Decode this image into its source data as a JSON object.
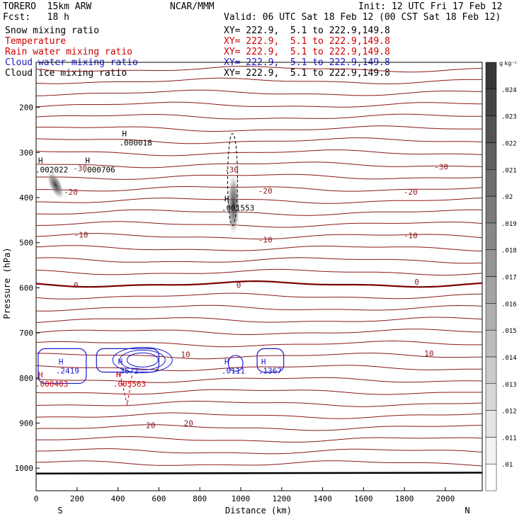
{
  "header": {
    "model": "TORERO  15km ARW",
    "center": "NCAR/MMM",
    "init": "Init: 12 UTC Fri 17 Feb 12",
    "fcst": "Fcst:   18 h",
    "valid": "Valid: 06 UTC Sat 18 Feb 12 (00 CST Sat 18 Feb 12)"
  },
  "fields": [
    {
      "name": "Snow mixing ratio",
      "xy": "XY= 222.9,  5.1 to 222.9,149.8",
      "color": "#000000"
    },
    {
      "name": "Temperature",
      "xy": "XY= 222.9,  5.1 to 222.9,149.8",
      "color": "#cc0000"
    },
    {
      "name": "Rain water mixing ratio",
      "xy": "XY= 222.9,  5.1 to 222.9,149.8",
      "color": "#cc0000"
    },
    {
      "name": "Cloud water mixing ratio",
      "xy": "XY= 222.9,  5.1 to 222.9,149.8",
      "color": "#1a1acc"
    },
    {
      "name": "Cloud ice mixing ratio",
      "xy": "XY= 222.9,  5.1 to 222.9,149.8",
      "color": "#000000"
    }
  ],
  "chart_data": {
    "type": "cross-section contour",
    "xlabel": "Distance (km)",
    "ylabel": "Pressure (hPa)",
    "x_ticks": [
      0,
      200,
      400,
      600,
      800,
      1000,
      1200,
      1400,
      1600,
      1800,
      2000
    ],
    "x_tick_labels": [
      "0",
      "200",
      "400",
      "600",
      "800",
      "1000",
      "1200",
      "1400",
      "1600",
      "1800",
      "2000"
    ],
    "y_ticks": [
      200,
      300,
      400,
      500,
      600,
      700,
      800,
      900,
      1000
    ],
    "y_tick_labels": [
      "200",
      "300",
      "400",
      "500",
      "600",
      "700",
      "800",
      "900",
      "1000"
    ],
    "xlim": [
      0,
      2180
    ],
    "ylim": [
      100,
      1050
    ],
    "left_end_label": "S",
    "right_end_label": "N",
    "colorbar": {
      "unit": "g kg⁻¹",
      "levels": [
        0.01,
        0.011,
        0.012,
        0.013,
        0.014,
        0.015,
        0.016,
        0.017,
        0.018,
        0.019,
        0.02,
        0.021,
        0.022,
        0.023,
        0.024
      ],
      "labels": [
        ".01",
        ".011",
        ".012",
        ".013",
        ".014",
        ".015",
        ".016",
        ".017",
        ".018",
        ".019",
        ".02",
        ".021",
        ".022",
        ".023",
        ".024"
      ]
    },
    "temperature_labels": [
      {
        "text": "-30",
        "x": 215,
        "p": 335
      },
      {
        "text": "-30",
        "x": 955,
        "p": 338
      },
      {
        "text": "-30",
        "x": 1980,
        "p": 332
      },
      {
        "text": "-20",
        "x": 170,
        "p": 387
      },
      {
        "text": "-20",
        "x": 1120,
        "p": 385
      },
      {
        "text": "-20",
        "x": 1830,
        "p": 387
      },
      {
        "text": "-10",
        "x": 220,
        "p": 482
      },
      {
        "text": "-10",
        "x": 1120,
        "p": 493
      },
      {
        "text": "-10",
        "x": 1830,
        "p": 484
      },
      {
        "text": "0",
        "x": 195,
        "p": 594
      },
      {
        "text": "0",
        "x": 990,
        "p": 594
      },
      {
        "text": "0",
        "x": 1860,
        "p": 587
      },
      {
        "text": "10",
        "x": 730,
        "p": 748
      },
      {
        "text": "10",
        "x": 1920,
        "p": 745
      },
      {
        "text": "20",
        "x": 560,
        "p": 905
      },
      {
        "text": "20",
        "x": 745,
        "p": 900
      }
    ],
    "max_labels": [
      {
        "h": "H",
        "value": ".000018",
        "x": 420,
        "p": 267,
        "color": "#000000"
      },
      {
        "h": "H",
        "value": ".002022",
        "x": 10,
        "p": 327,
        "color": "#000000"
      },
      {
        "h": "H",
        "value": ".000706",
        "x": 240,
        "p": 327,
        "color": "#000000"
      },
      {
        "h": "H",
        "value": ".001553",
        "x": 920,
        "p": 412,
        "color": "#000000"
      },
      {
        "h": "H",
        "value": ".2419",
        "x": 110,
        "p": 773,
        "color": "#1a1acc"
      },
      {
        "h": "H",
        "value": ".3672",
        "x": 400,
        "p": 773,
        "color": "#1a1acc"
      },
      {
        "h": "H",
        "value": ".0111",
        "x": 920,
        "p": 773,
        "color": "#1a1acc"
      },
      {
        "h": "H",
        "value": ".1367",
        "x": 1100,
        "p": 773,
        "color": "#1a1acc"
      },
      {
        "h": "H",
        "value": ".000403",
        "x": 10,
        "p": 802,
        "color": "#cc0000"
      },
      {
        "h": "H",
        "value": ".005563",
        "x": 390,
        "p": 802,
        "color": "#cc0000"
      }
    ]
  },
  "colors": {
    "temperature": "#8b1a1a",
    "zero_isotherm": "#7a0000",
    "cloud_water": "#1a1acc",
    "rain": "#cc0000",
    "snow": "#000000"
  }
}
